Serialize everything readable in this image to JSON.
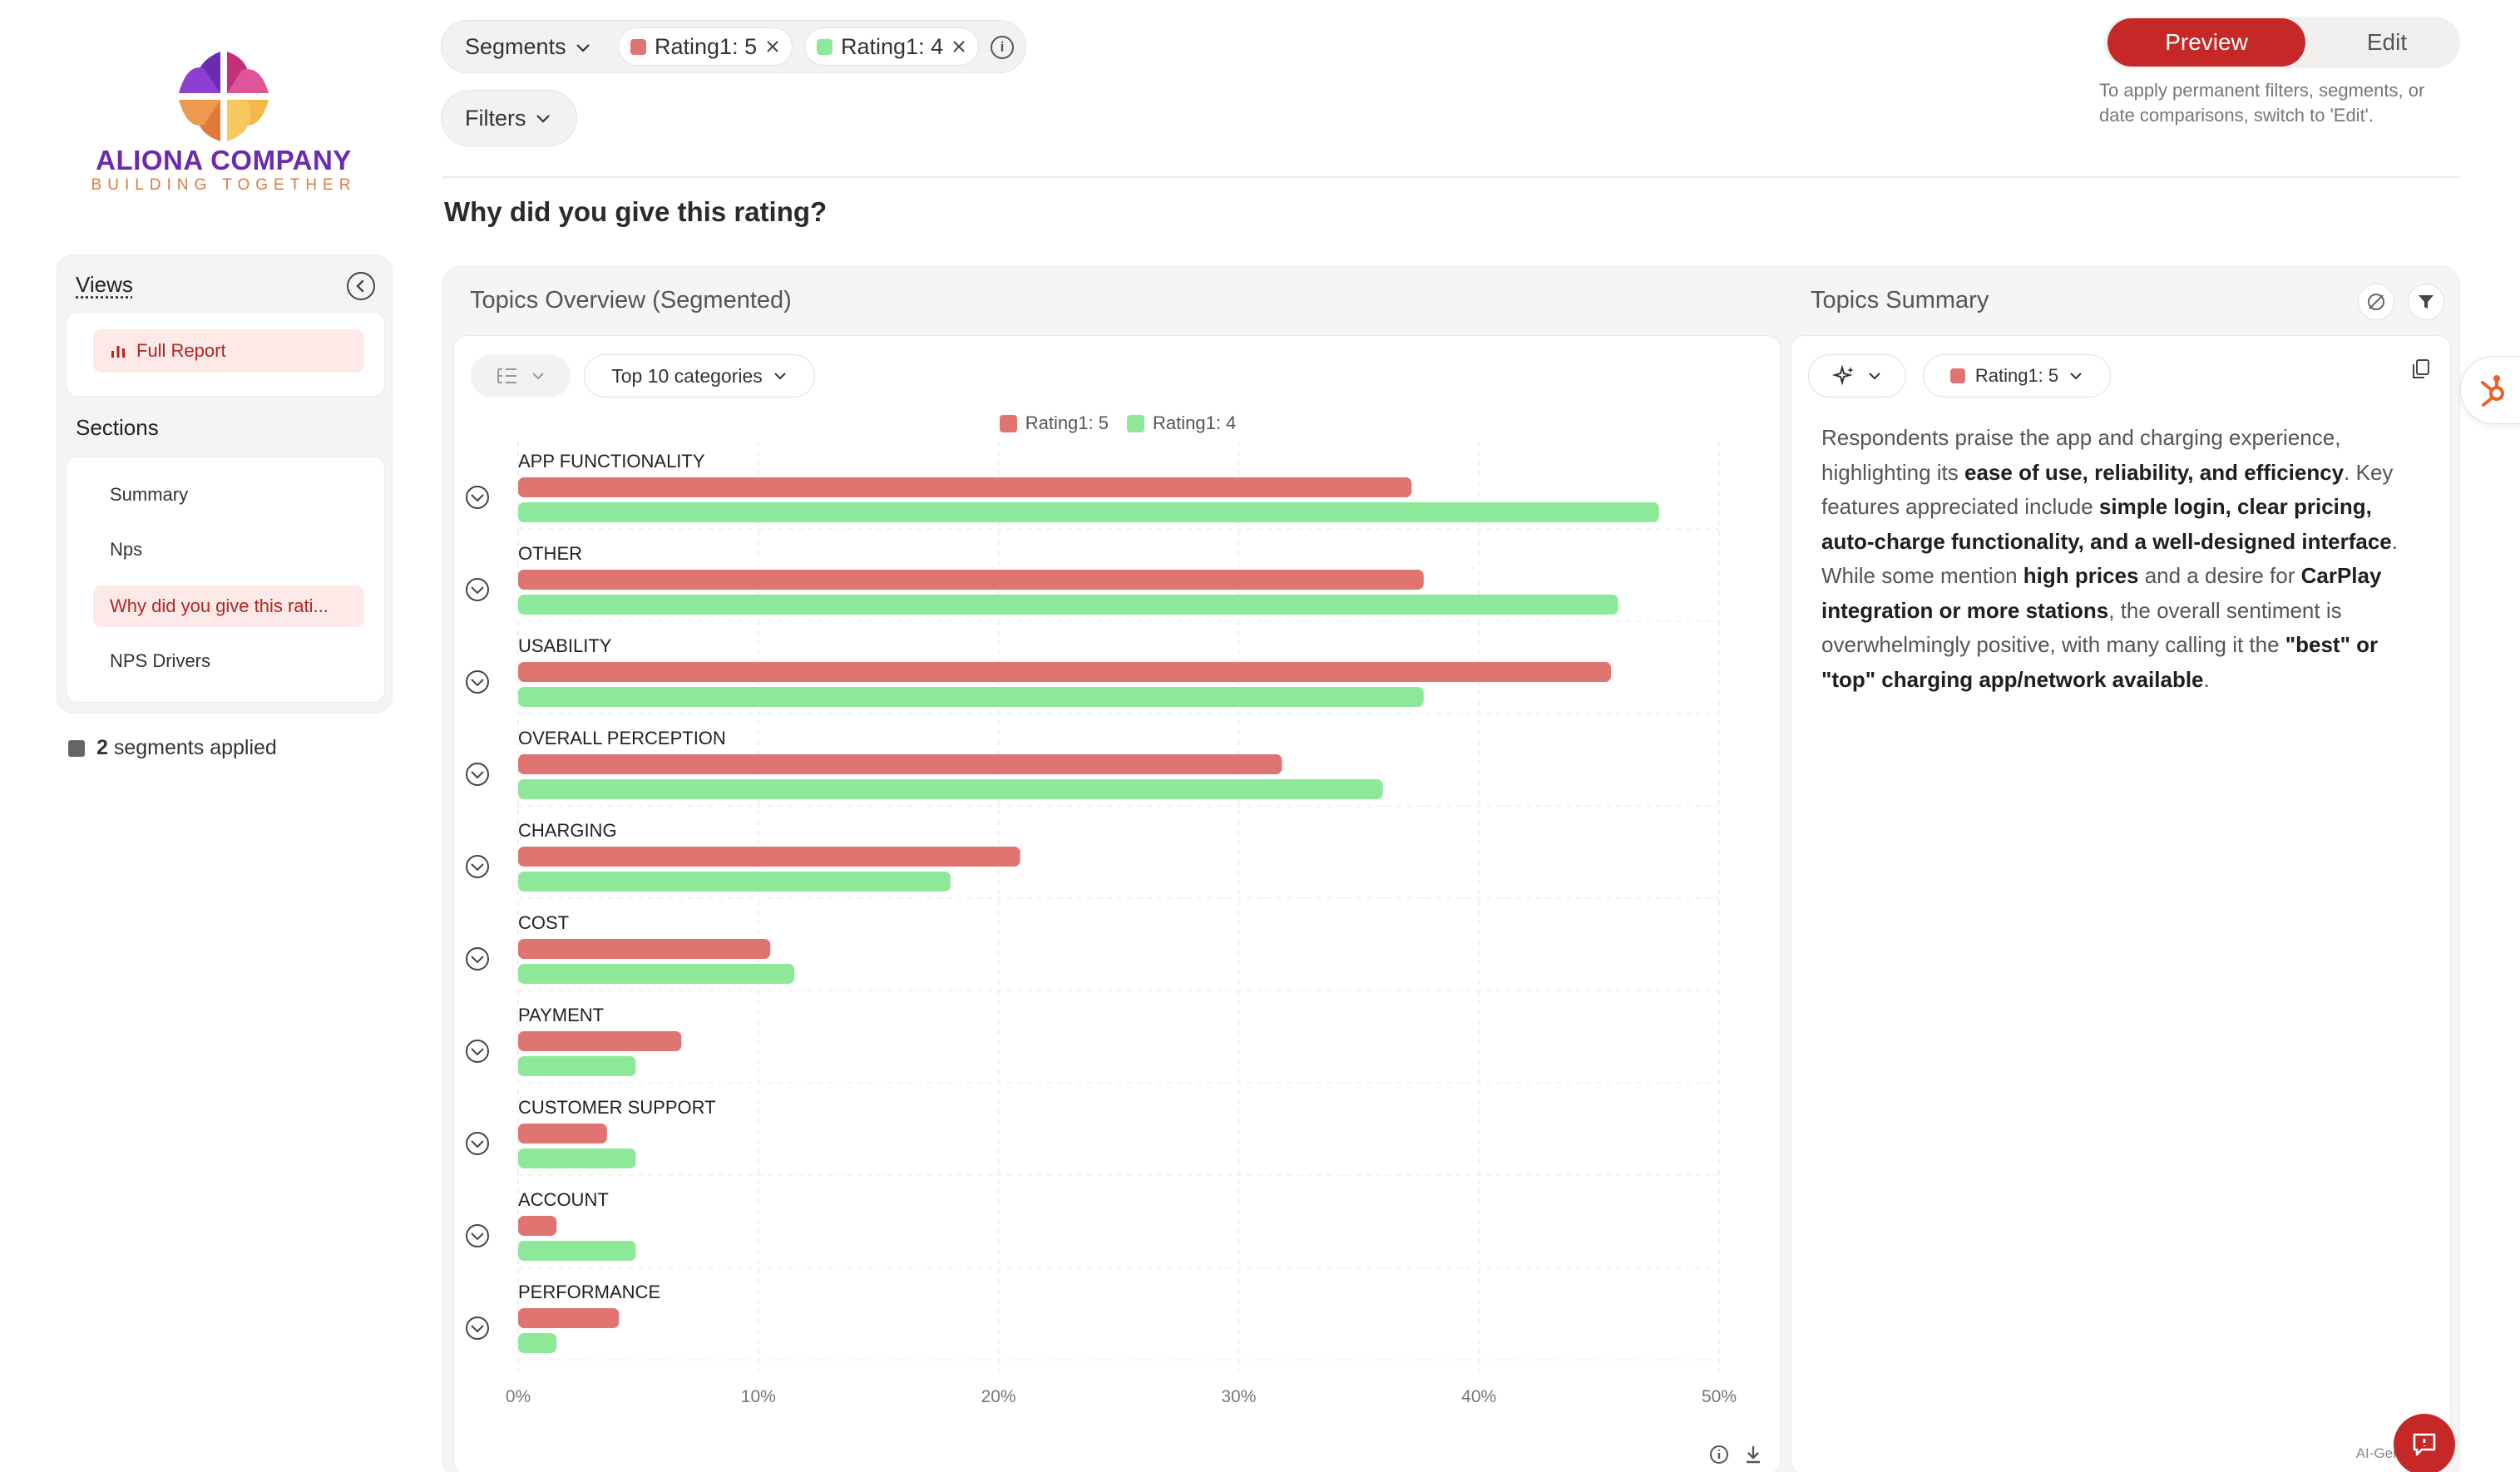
{
  "brand": {
    "name": "ALIONA COMPANY",
    "tagline": "BUILDING TOGETHER"
  },
  "sidebar": {
    "views_title": "Views",
    "views": [
      {
        "label": "Full Report",
        "icon": "bar-chart-icon"
      }
    ],
    "sections_title": "Sections",
    "sections": [
      {
        "label": "Summary"
      },
      {
        "label": "Nps"
      },
      {
        "label": "Why did you give this rati..."
      },
      {
        "label": "NPS Drivers"
      }
    ],
    "segments_count": "2",
    "segments_text": "segments applied"
  },
  "topbar": {
    "segments_label": "Segments",
    "chips": [
      {
        "label": "Rating1: 5",
        "color": "#e07470"
      },
      {
        "label": "Rating1: 4",
        "color": "#8ee89a"
      }
    ],
    "filters_label": "Filters",
    "mode": {
      "preview": "Preview",
      "edit": "Edit"
    },
    "mode_hint": "To apply permanent filters, segments, or date comparisons, switch to 'Edit'."
  },
  "page": {
    "title": "Why did you give this rating?"
  },
  "overview": {
    "title": "Topics Overview (Segmented)",
    "category_select": "Top 10 categories"
  },
  "summary": {
    "title": "Topics Summary",
    "segment_select": "Rating1: 5",
    "parts": [
      {
        "t": "Respondents praise the app and charging experience, highlighting its ",
        "b": false
      },
      {
        "t": "ease of use, reliability, and efficiency",
        "b": true
      },
      {
        "t": ". Key features appreciated include ",
        "b": false
      },
      {
        "t": "simple login, clear pricing, auto-charge functionality, and a well-designed interface",
        "b": true
      },
      {
        "t": ". While some mention ",
        "b": false
      },
      {
        "t": "high prices",
        "b": true
      },
      {
        "t": " and a desire for ",
        "b": false
      },
      {
        "t": "CarPlay integration or more stations",
        "b": true
      },
      {
        "t": ", the overall sentiment is overwhelmingly positive, with many calling it the ",
        "b": false
      },
      {
        "t": "\"best\" or \"top\" charging app/network available",
        "b": true
      },
      {
        "t": ".",
        "b": false
      }
    ],
    "ai_note": "AI-Gene"
  },
  "colors": {
    "accent": "#c62828",
    "series_5": "#e07470",
    "series_4": "#8ee89a"
  },
  "chart_data": {
    "type": "bar",
    "orientation": "horizontal",
    "categories": [
      "APP FUNCTIONALITY",
      "OTHER",
      "USABILITY",
      "OVERALL PERCEPTION",
      "CHARGING",
      "COST",
      "PAYMENT",
      "CUSTOMER SUPPORT",
      "ACCOUNT",
      "PERFORMANCE"
    ],
    "series": [
      {
        "name": "Rating1: 5",
        "color": "#e07470",
        "values": [
          37.2,
          37.7,
          45.5,
          31.8,
          20.9,
          10.5,
          6.8,
          3.7,
          1.6,
          4.2
        ]
      },
      {
        "name": "Rating1: 4",
        "color": "#8ee89a",
        "values": [
          47.5,
          45.8,
          37.7,
          36.0,
          18.0,
          11.5,
          4.9,
          4.9,
          4.9,
          1.6
        ]
      }
    ],
    "xlim": [
      0,
      50
    ],
    "xticks": [
      "0%",
      "10%",
      "20%",
      "30%",
      "40%",
      "50%"
    ],
    "grid": true,
    "legend": "top-center"
  }
}
